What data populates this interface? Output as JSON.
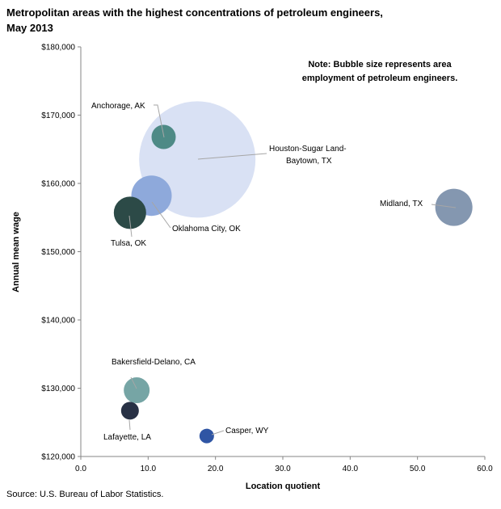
{
  "chart_data": {
    "type": "scatter",
    "title_line1": "Metropolitan areas with the highest concentrations of petroleum engineers,",
    "title_line2": "May 2013",
    "xlabel": "Location quotient",
    "ylabel": "Annual mean wage",
    "note_line1": "Note: Bubble size represents area",
    "note_line2": "employment of petroleum engineers.",
    "source": "Source: U.S. Bureau of Labor Statistics.",
    "xlim": [
      0,
      60
    ],
    "ylim": [
      120000,
      180000
    ],
    "x_ticks": [
      0,
      10,
      20,
      30,
      40,
      50,
      60
    ],
    "x_tick_labels": [
      "0.0",
      "10.0",
      "20.0",
      "30.0",
      "40.0",
      "50.0",
      "60.0"
    ],
    "y_ticks": [
      120000,
      130000,
      140000,
      150000,
      160000,
      170000,
      180000
    ],
    "y_tick_labels": [
      "$120,000",
      "$130,000",
      "$140,000",
      "$150,000",
      "$160,000",
      "$170,000",
      "$180,000"
    ],
    "grid": false,
    "points": [
      {
        "label": "Houston-Sugar Land-",
        "label2": "Baytown, TX",
        "x": 17.3,
        "y": 163500,
        "size": 72,
        "color": "#d9e1f4"
      },
      {
        "label": "Anchorage, AK",
        "x": 12.3,
        "y": 166800,
        "size": 15,
        "color": "#4e8a86"
      },
      {
        "label": "Oklahoma City, OK",
        "x": 10.5,
        "y": 158200,
        "size": 25,
        "color": "#8ea9db"
      },
      {
        "label": "Tulsa, OK",
        "x": 7.3,
        "y": 155700,
        "size": 20,
        "color": "#2c4a47"
      },
      {
        "label": "Midland, TX",
        "x": 55.4,
        "y": 156500,
        "size": 23,
        "color": "#8497b0"
      },
      {
        "label": "Bakersfield-Delano, CA",
        "x": 8.3,
        "y": 129700,
        "size": 16,
        "color": "#76a5a5"
      },
      {
        "label": "Lafayette, LA",
        "x": 7.3,
        "y": 126700,
        "size": 11,
        "color": "#283145"
      },
      {
        "label": "Casper, WY",
        "x": 18.7,
        "y": 123000,
        "size": 9,
        "color": "#2f55a4"
      }
    ]
  }
}
